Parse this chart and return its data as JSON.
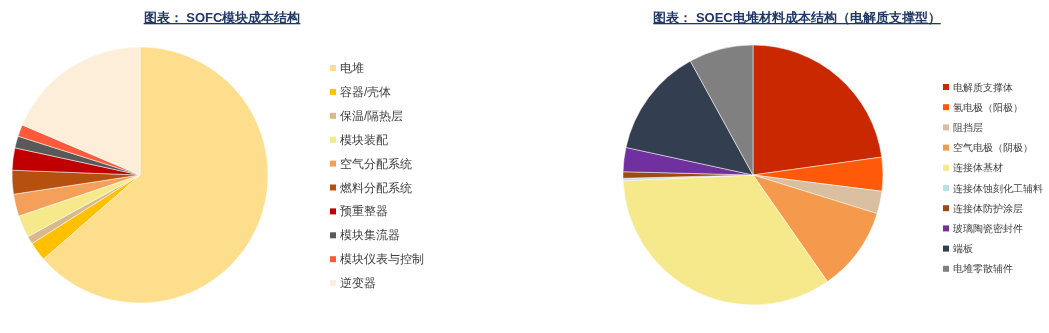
{
  "chart_data": [
    {
      "type": "pie",
      "title": "图表： SOFC模块成本结构",
      "legend": "right",
      "categories": [
        "电堆",
        "容器/壳体",
        "保温/隔热层",
        "模块装配",
        "空气分配系统",
        "燃料分配系统",
        "预重整器",
        "模块集流器",
        "模块仪表与控制",
        "逆变器"
      ],
      "values": [
        63.6,
        2.4,
        1.0,
        2.8,
        2.8,
        3.0,
        2.8,
        1.5,
        1.5,
        18.6
      ],
      "colors": [
        "#fdde8c",
        "#ffc000",
        "#d9b98c",
        "#f5e98c",
        "#f4a05a",
        "#b5500e",
        "#c00000",
        "#595959",
        "#ff5a3c",
        "#fdeeda"
      ]
    },
    {
      "type": "pie",
      "title": "图表： SOEC电堆材料成本结构（电解质支撑型）",
      "legend": "right",
      "categories": [
        "电解质支撑体",
        "氢电极（阳极）",
        "阻挡层",
        "空气电极（阴极）",
        "连接体基材",
        "连接体蚀刻化工辅料",
        "连接体防护涂层",
        "玻璃陶瓷密封件",
        "端板",
        "电堆零散辅件"
      ],
      "values": [
        22.8,
        4.2,
        2.8,
        10.5,
        34.0,
        0.3,
        0.8,
        3.0,
        13.6,
        8.0
      ],
      "colors": [
        "#c92800",
        "#ff5a0a",
        "#d9bfa0",
        "#f5994c",
        "#f5e98c",
        "#b7e0e6",
        "#9c4a12",
        "#7030a0",
        "#333f50",
        "#808080"
      ]
    }
  ]
}
